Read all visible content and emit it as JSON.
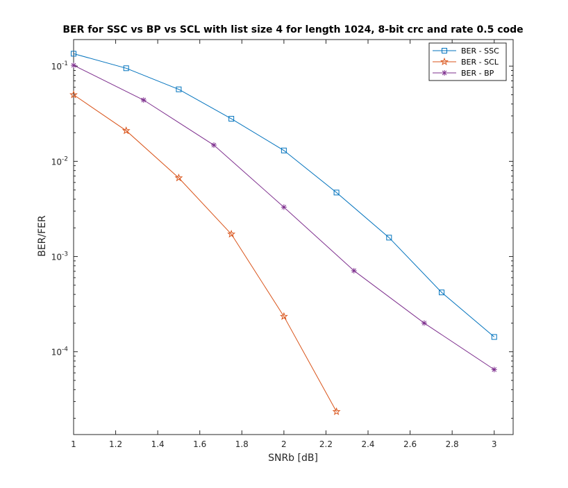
{
  "chart_data": {
    "type": "line",
    "title": "BER for SSC vs BP vs SCL with list size 4 for length 1024, 8-bit crc and rate 0.5 code",
    "xlabel": "SNRb [dB]",
    "ylabel": "BER/FER",
    "xlim": [
      1,
      3.09
    ],
    "ylim": [
      1.35e-05,
      0.19
    ],
    "yscale": "log",
    "x_ticks": [
      "1",
      "1.2",
      "1.4",
      "1.6",
      "1.8",
      "2",
      "2.2",
      "2.4",
      "2.6",
      "2.8",
      "3"
    ],
    "y_ticks": [
      {
        "base": "10",
        "exp": "-1",
        "value": 0.1
      },
      {
        "base": "10",
        "exp": "-2",
        "value": 0.01
      },
      {
        "base": "10",
        "exp": "-3",
        "value": 0.001
      },
      {
        "base": "10",
        "exp": "-4",
        "value": 0.0001
      }
    ],
    "grid": false,
    "legend_position": "top-right",
    "series": [
      {
        "name": "BER - SSC",
        "color": "#0072bd",
        "marker": "square",
        "x": [
          1,
          1.25,
          1.5,
          1.75,
          2,
          2.25,
          2.5,
          2.75,
          3
        ],
        "y": [
          0.135,
          0.095,
          0.057,
          0.028,
          0.013,
          0.0047,
          0.00158,
          0.00042,
          0.000143
        ]
      },
      {
        "name": "BER - SCL",
        "color": "#d95319",
        "marker": "pentagram",
        "x": [
          1,
          1.25,
          1.5,
          1.75,
          2,
          2.25
        ],
        "y": [
          0.05,
          0.021,
          0.0067,
          0.00172,
          0.000235,
          2.35e-05
        ]
      },
      {
        "name": "BER - BP",
        "color": "#7e2f8e",
        "marker": "asterisk",
        "x": [
          1,
          1.333,
          1.667,
          2,
          2.333,
          2.667,
          3
        ],
        "y": [
          0.102,
          0.044,
          0.0148,
          0.0033,
          0.00071,
          0.0002,
          6.5e-05
        ]
      }
    ]
  }
}
